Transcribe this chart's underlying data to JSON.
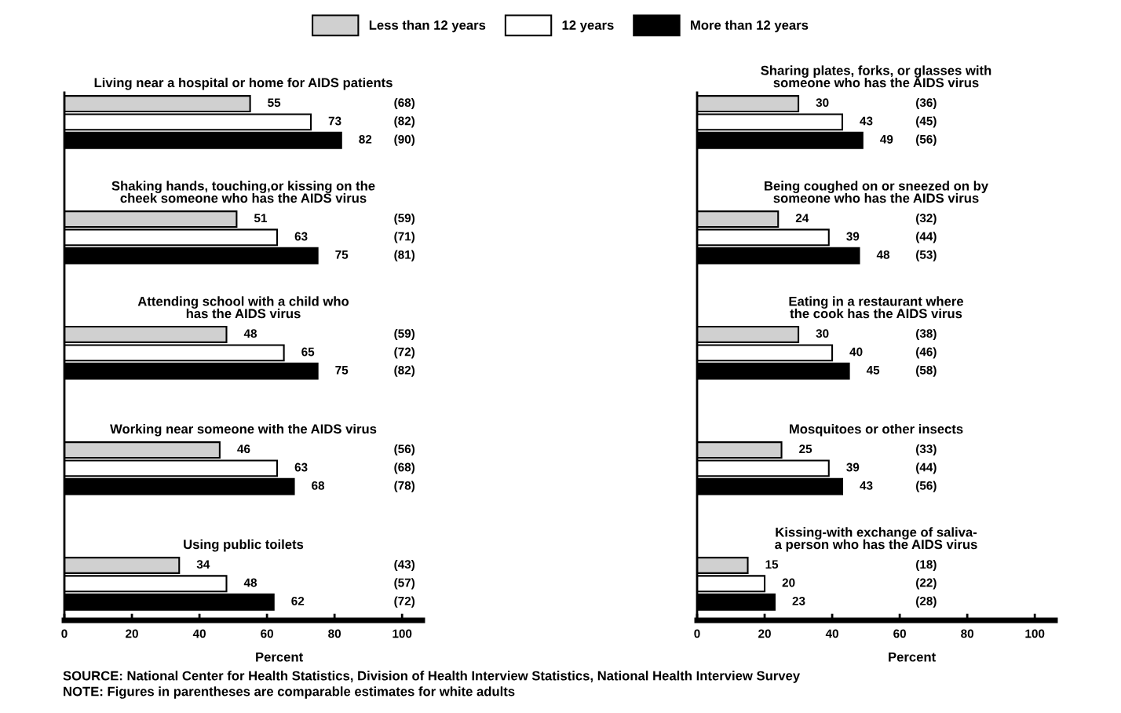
{
  "chart_data": [
    {
      "type": "bar",
      "orientation": "horizontal",
      "categories": [
        "Living near a hospital or home for AIDS patients",
        "Shaking hands, touching,or kissing on the\ncheek someone who has the AIDS virus",
        "Attending school with a child who\nhas the AIDS virus",
        "Working near someone with the AIDS virus",
        "Using public toilets"
      ],
      "xlim": [
        0,
        106
      ],
      "xticks": [
        0,
        20,
        40,
        60,
        80,
        100
      ],
      "xlabel": "Percent",
      "data_labels": true,
      "legend": "top",
      "series": [
        {
          "name": "Less than 12 years",
          "color": "#d0d0d0",
          "values": [
            55,
            51,
            48,
            46,
            34
          ]
        },
        {
          "name": "12 years",
          "color": "#ffffff",
          "values": [
            73,
            63,
            65,
            63,
            48
          ]
        },
        {
          "name": "More than 12 years",
          "color": "#000000",
          "values": [
            82,
            75,
            75,
            68,
            62
          ]
        }
      ],
      "annotations": [
        "(68)",
        "(82)",
        "(90)",
        "(59)",
        "(71)",
        "(81)",
        "(59)",
        "(72)",
        "(82)",
        "(56)",
        "(68)",
        "(78)",
        "(43)",
        "(57)",
        "(72)",
        "SOURCE: National Center for Health Statistics, Division of Health Interview Statistics, National Health Interview Survey",
        "NOTE: Figures in parentheses are comparable estimates for white adults"
      ]
    },
    {
      "type": "bar",
      "orientation": "horizontal",
      "categories": [
        "Sharing plates, forks, or glasses with\nsomeone who has the AIDS virus",
        "Being coughed on or sneezed on by\nsomeone who has the AIDS virus",
        "Eating in a restaurant where\nthe cook has the AIDS virus",
        "Mosquitoes or other insects",
        "Kissing-with exchange of saliva-\na person who has the AIDS virus"
      ],
      "xlim": [
        0,
        106
      ],
      "xticks": [
        0,
        20,
        40,
        60,
        80,
        100
      ],
      "xlabel": "Percent",
      "data_labels": true,
      "series": [
        {
          "color": "#d0d0d0",
          "values": [
            30,
            24,
            30,
            25,
            15
          ]
        },
        {
          "color": "#ffffff",
          "values": [
            43,
            39,
            40,
            39,
            20
          ]
        },
        {
          "color": "#000000",
          "values": [
            49,
            48,
            45,
            43,
            23
          ]
        }
      ],
      "annotations": [
        "(36)",
        "(45)",
        "(56)",
        "(32)",
        "(44)",
        "(53)",
        "(38)",
        "(46)",
        "(58)",
        "(33)",
        "(44)",
        "(56)",
        "(18)",
        "(22)",
        "(28)"
      ]
    }
  ]
}
